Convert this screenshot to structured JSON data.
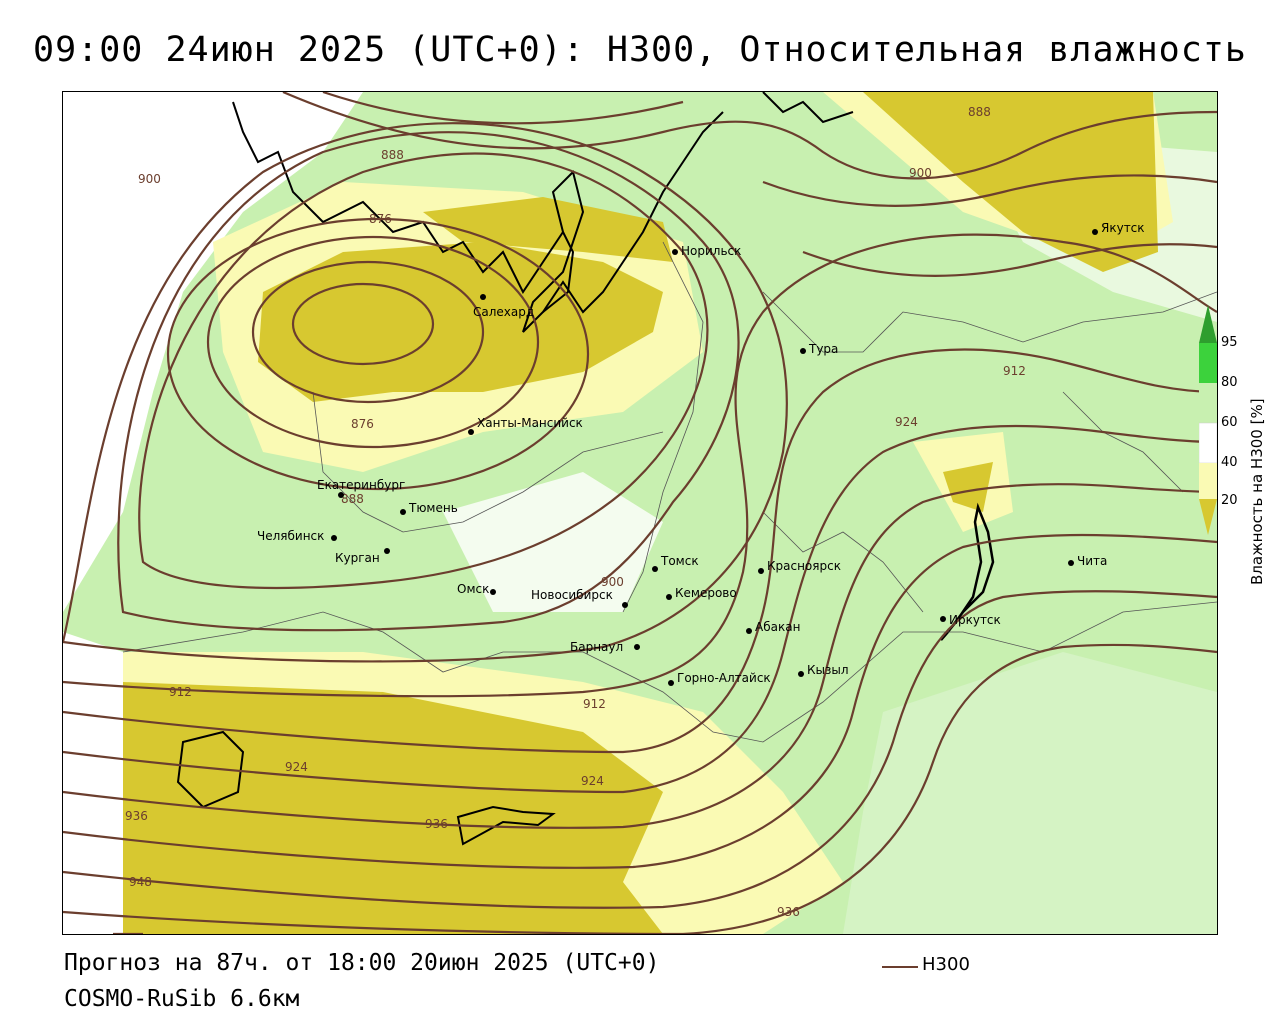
{
  "header": {
    "title": "09:00 24июн 2025 (UTC+0): H300, Относительная влажность"
  },
  "footer": {
    "forecast": "Прогноз на 87ч. от 18:00 20июн 2025 (UTC+0)",
    "model": "COSMO-RuSib 6.6км"
  },
  "legend": {
    "line_label": "H300",
    "line_color": "#6b3e2e"
  },
  "colorbar": {
    "title": "Влажность на H300 [%]",
    "ticks": [
      "95",
      "80",
      "60",
      "40",
      "20"
    ],
    "colors": {
      "above_95": "#2e9e2e",
      "c80_95": "#3cd23c",
      "c60_80": "#c8f0b0",
      "c40_60": "#ffffff",
      "c20_40": "#fafab4",
      "below_20": "#d7c830"
    }
  },
  "cities": [
    {
      "name": "Салехард"
    },
    {
      "name": "Норильск"
    },
    {
      "name": "Якутск"
    },
    {
      "name": "Тура"
    },
    {
      "name": "Ханты-Мансийск"
    },
    {
      "name": "Екатеринбург"
    },
    {
      "name": "Тюмень"
    },
    {
      "name": "Челябинск"
    },
    {
      "name": "Курган"
    },
    {
      "name": "Омск"
    },
    {
      "name": "Новосибирск"
    },
    {
      "name": "Томск"
    },
    {
      "name": "Кемерово"
    },
    {
      "name": "Красноярск"
    },
    {
      "name": "Барнаул"
    },
    {
      "name": "Абакан"
    },
    {
      "name": "Горно-Алтайск"
    },
    {
      "name": "Кызыл"
    },
    {
      "name": "Иркутск"
    },
    {
      "name": "Чита"
    }
  ],
  "contour_labels": [
    "888",
    "900",
    "876",
    "888",
    "900",
    "912",
    "924",
    "876",
    "888",
    "900",
    "912",
    "912",
    "924",
    "924",
    "936",
    "936",
    "948",
    "936"
  ]
}
